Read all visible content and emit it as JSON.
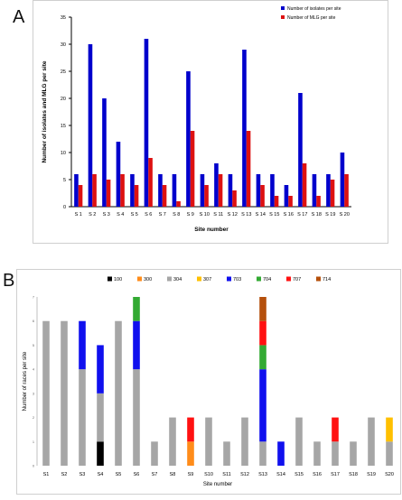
{
  "chart_data": [
    {
      "panel": "A",
      "type": "bar",
      "categories": [
        "S 1",
        "S 2",
        "S 3",
        "S 4",
        "S 5",
        "S 6",
        "S 7",
        "S 8",
        "S 9",
        "S 10",
        "S 11",
        "S 12",
        "S 13",
        "S 14",
        "S 15",
        "S 16",
        "S 17",
        "S 18",
        "S 19",
        "S 20"
      ],
      "series": [
        {
          "name": "Number of isolates per site",
          "color": "#0000cc",
          "values": [
            6,
            30,
            20,
            12,
            6,
            31,
            6,
            6,
            25,
            6,
            8,
            6,
            29,
            6,
            6,
            4,
            21,
            6,
            6,
            10
          ]
        },
        {
          "name": "Number of MLG per site",
          "color": "#dd1111",
          "values": [
            4,
            6,
            5,
            6,
            4,
            9,
            4,
            1,
            14,
            4,
            6,
            3,
            14,
            4,
            2,
            2,
            8,
            2,
            5,
            6
          ]
        }
      ],
      "xlabel": "Site number",
      "ylabel": "Number of isolates and MLG per site",
      "ylim": [
        0,
        35
      ],
      "yticks": [
        0,
        5,
        10,
        15,
        20,
        25,
        30,
        35
      ],
      "grid": false,
      "legend": "top-right"
    },
    {
      "panel": "B",
      "type": "bar",
      "stacked": true,
      "categories": [
        "S1",
        "S2",
        "S3",
        "S4",
        "S5",
        "S6",
        "S7",
        "S8",
        "S9",
        "S10",
        "S11",
        "S12",
        "S13",
        "S14",
        "S15",
        "S16",
        "S17",
        "S18",
        "S19",
        "S20"
      ],
      "series": [
        {
          "name": "100",
          "color": "#000000",
          "values": [
            0,
            0,
            0,
            1,
            0,
            0,
            0,
            0,
            0,
            0,
            0,
            0,
            0,
            0,
            0,
            0,
            0,
            0,
            0,
            0
          ]
        },
        {
          "name": "300",
          "color": "#ff8c1a",
          "values": [
            0,
            0,
            0,
            0,
            0,
            0,
            0,
            0,
            1,
            0,
            0,
            0,
            0,
            0,
            0,
            0,
            0,
            0,
            0,
            0
          ]
        },
        {
          "name": "304",
          "color": "#a6a6a6",
          "values": [
            6,
            6,
            4,
            2,
            6,
            4,
            1,
            2,
            0,
            2,
            1,
            2,
            1,
            0,
            2,
            1,
            1,
            1,
            2,
            1
          ]
        },
        {
          "name": "307",
          "color": "#ffc000",
          "values": [
            0,
            0,
            0,
            0,
            0,
            0,
            0,
            0,
            0,
            0,
            0,
            0,
            0,
            0,
            0,
            0,
            0,
            0,
            0,
            1
          ]
        },
        {
          "name": "703",
          "color": "#1010ee",
          "values": [
            0,
            0,
            2,
            2,
            0,
            2,
            0,
            0,
            0,
            0,
            0,
            0,
            3,
            1,
            0,
            0,
            0,
            0,
            0,
            0
          ]
        },
        {
          "name": "704",
          "color": "#33aa33",
          "values": [
            0,
            0,
            0,
            0,
            0,
            1,
            0,
            0,
            0,
            0,
            0,
            0,
            1,
            0,
            0,
            0,
            0,
            0,
            0,
            0
          ]
        },
        {
          "name": "707",
          "color": "#ff1111",
          "values": [
            0,
            0,
            0,
            0,
            0,
            0,
            0,
            0,
            1,
            0,
            0,
            0,
            1,
            0,
            0,
            0,
            1,
            0,
            0,
            0
          ]
        },
        {
          "name": "714",
          "color": "#b5500c",
          "values": [
            0,
            0,
            0,
            0,
            0,
            0,
            0,
            0,
            0,
            0,
            0,
            0,
            1,
            0,
            0,
            0,
            0,
            0,
            0,
            0
          ]
        }
      ],
      "xlabel": "Site number",
      "ylabel": "Number of races per site",
      "ylim": [
        0,
        7
      ],
      "yticks": [
        0,
        1,
        2,
        3,
        4,
        5,
        6,
        7
      ],
      "grid": false,
      "legend": "top"
    }
  ],
  "panels": {
    "a_letter": "A",
    "b_letter": "B"
  }
}
